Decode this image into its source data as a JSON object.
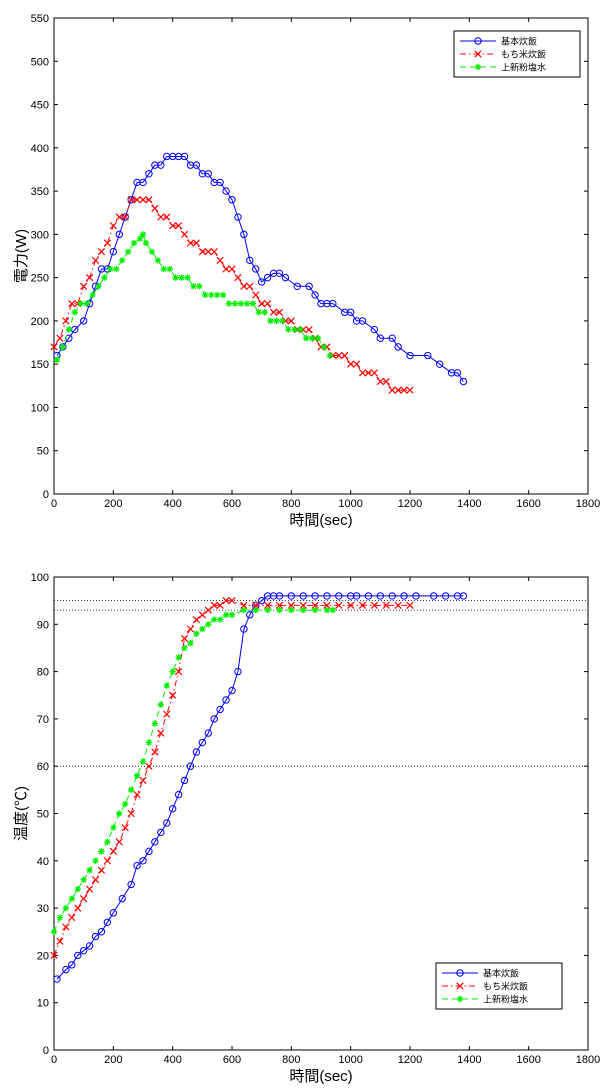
{
  "chart_data": [
    {
      "type": "line",
      "xlabel": "時間(sec)",
      "ylabel": "電力(W)",
      "xlim": [
        0,
        1800
      ],
      "ylim": [
        0,
        550
      ],
      "xticks": [
        "0",
        "200",
        "400",
        "600",
        "800",
        "1000",
        "1200",
        "1400",
        "1600",
        "1800"
      ],
      "yticks": [
        "0",
        "50",
        "100",
        "150",
        "200",
        "250",
        "300",
        "350",
        "400",
        "450",
        "500",
        "550"
      ],
      "grid": false,
      "legend_position": "top-right",
      "series": [
        {
          "name": "基本炊飯",
          "color": "#0000ff",
          "marker": "circle",
          "dash": "solid",
          "x": [
            10,
            30,
            50,
            70,
            100,
            120,
            140,
            160,
            180,
            200,
            220,
            240,
            260,
            280,
            300,
            320,
            340,
            360,
            380,
            400,
            420,
            440,
            460,
            480,
            500,
            520,
            540,
            560,
            580,
            600,
            620,
            640,
            660,
            680,
            700,
            720,
            740,
            760,
            780,
            820,
            860,
            880,
            900,
            920,
            940,
            980,
            1000,
            1020,
            1040,
            1080,
            1100,
            1140,
            1160,
            1200,
            1260,
            1300,
            1340,
            1360,
            1380
          ],
          "y": [
            160,
            170,
            180,
            190,
            200,
            220,
            240,
            260,
            260,
            280,
            300,
            320,
            340,
            360,
            360,
            370,
            380,
            380,
            390,
            390,
            390,
            390,
            380,
            380,
            370,
            370,
            360,
            360,
            350,
            340,
            320,
            300,
            270,
            260,
            245,
            250,
            255,
            255,
            250,
            240,
            240,
            230,
            220,
            220,
            220,
            210,
            210,
            200,
            200,
            190,
            180,
            180,
            170,
            160,
            160,
            150,
            140,
            140,
            130
          ]
        },
        {
          "name": "もち米炊飯",
          "color": "#ff0000",
          "marker": "x",
          "dash": "dashdot",
          "x": [
            0,
            20,
            40,
            60,
            80,
            100,
            120,
            140,
            160,
            180,
            200,
            220,
            240,
            260,
            280,
            300,
            320,
            340,
            360,
            380,
            400,
            420,
            440,
            460,
            480,
            500,
            520,
            540,
            560,
            580,
            600,
            620,
            640,
            660,
            680,
            700,
            720,
            740,
            760,
            780,
            800,
            820,
            840,
            860,
            880,
            900,
            920,
            940,
            960,
            980,
            1000,
            1020,
            1040,
            1060,
            1080,
            1100,
            1120,
            1140,
            1160,
            1180,
            1200
          ],
          "y": [
            170,
            180,
            200,
            220,
            220,
            240,
            250,
            270,
            280,
            290,
            310,
            320,
            320,
            340,
            340,
            340,
            340,
            330,
            320,
            320,
            310,
            310,
            300,
            290,
            290,
            280,
            280,
            280,
            270,
            260,
            260,
            250,
            240,
            240,
            230,
            220,
            220,
            210,
            210,
            200,
            200,
            190,
            190,
            190,
            180,
            170,
            170,
            160,
            160,
            160,
            150,
            150,
            140,
            140,
            140,
            130,
            130,
            120,
            120,
            120,
            120
          ]
        },
        {
          "name": "上新粉塩水",
          "color": "#00ee00",
          "marker": "star",
          "dash": "dash",
          "x": [
            10,
            30,
            50,
            70,
            90,
            110,
            130,
            150,
            170,
            190,
            210,
            230,
            250,
            270,
            290,
            300,
            310,
            330,
            350,
            370,
            390,
            410,
            430,
            450,
            470,
            490,
            510,
            530,
            550,
            570,
            590,
            610,
            630,
            650,
            670,
            690,
            710,
            730,
            750,
            770,
            790,
            810,
            830,
            850,
            870,
            890,
            910,
            930
          ],
          "y": [
            155,
            170,
            190,
            210,
            220,
            220,
            230,
            240,
            250,
            260,
            260,
            270,
            280,
            290,
            295,
            300,
            290,
            280,
            270,
            260,
            260,
            250,
            250,
            250,
            240,
            240,
            230,
            230,
            230,
            230,
            220,
            220,
            220,
            220,
            220,
            210,
            210,
            200,
            200,
            200,
            190,
            190,
            190,
            180,
            180,
            180,
            170,
            160
          ]
        }
      ]
    },
    {
      "type": "line",
      "xlabel": "時間(sec)",
      "ylabel": "温度(℃)",
      "xlim": [
        0,
        1800
      ],
      "ylim": [
        0,
        100
      ],
      "xticks": [
        "0",
        "200",
        "400",
        "600",
        "800",
        "1000",
        "1200",
        "1400",
        "1600",
        "1800"
      ],
      "yticks": [
        "0",
        "10",
        "20",
        "30",
        "40",
        "50",
        "60",
        "70",
        "80",
        "90",
        "100"
      ],
      "grid": false,
      "reference_lines_y": [
        60,
        93,
        95
      ],
      "legend_position": "bottom-right",
      "series": [
        {
          "name": "基本炊飯",
          "color": "#0000ff",
          "marker": "circle",
          "dash": "solid",
          "x": [
            10,
            40,
            60,
            80,
            100,
            120,
            140,
            160,
            180,
            200,
            230,
            260,
            280,
            300,
            320,
            340,
            360,
            380,
            400,
            420,
            440,
            460,
            480,
            500,
            520,
            540,
            560,
            580,
            600,
            620,
            640,
            660,
            680,
            700,
            720,
            740,
            760,
            800,
            840,
            880,
            920,
            960,
            1000,
            1020,
            1060,
            1100,
            1140,
            1180,
            1220,
            1280,
            1320,
            1360,
            1380
          ],
          "y": [
            15,
            17,
            18,
            20,
            21,
            22,
            24,
            25,
            27,
            29,
            32,
            35,
            39,
            40,
            42,
            44,
            46,
            48,
            51,
            54,
            57,
            60,
            63,
            65,
            67,
            70,
            72,
            74,
            76,
            80,
            89,
            92,
            94,
            95,
            96,
            96,
            96,
            96,
            96,
            96,
            96,
            96,
            96,
            96,
            96,
            96,
            96,
            96,
            96,
            96,
            96,
            96,
            96
          ]
        },
        {
          "name": "もち米炊飯",
          "color": "#ff0000",
          "marker": "x",
          "dash": "dashdot",
          "x": [
            0,
            20,
            40,
            60,
            80,
            100,
            120,
            140,
            160,
            180,
            200,
            220,
            240,
            260,
            280,
            300,
            320,
            340,
            360,
            380,
            400,
            420,
            440,
            460,
            480,
            500,
            520,
            540,
            560,
            580,
            600,
            640,
            680,
            720,
            760,
            800,
            840,
            880,
            920,
            960,
            1000,
            1040,
            1080,
            1120,
            1160,
            1200
          ],
          "y": [
            20,
            23,
            26,
            28,
            30,
            32,
            34,
            36,
            38,
            40,
            42,
            44,
            47,
            50,
            54,
            57,
            60,
            63,
            67,
            71,
            75,
            80,
            87,
            89,
            91,
            92,
            93,
            94,
            94,
            95,
            95,
            94,
            94,
            94,
            94,
            94,
            94,
            94,
            94,
            94,
            94,
            94,
            94,
            94,
            94,
            94
          ]
        },
        {
          "name": "上新粉塩水",
          "color": "#00ee00",
          "marker": "star",
          "dash": "dash",
          "x": [
            0,
            20,
            40,
            60,
            80,
            100,
            120,
            140,
            160,
            180,
            200,
            220,
            240,
            260,
            280,
            300,
            320,
            340,
            360,
            380,
            400,
            420,
            440,
            460,
            480,
            500,
            520,
            540,
            560,
            580,
            600,
            640,
            680,
            720,
            760,
            800,
            840,
            880,
            920,
            940
          ],
          "y": [
            25,
            28,
            30,
            32,
            34,
            36,
            38,
            40,
            42,
            44,
            47,
            50,
            52,
            55,
            58,
            61,
            65,
            69,
            73,
            77,
            80,
            83,
            85,
            86,
            88,
            89,
            90,
            91,
            91,
            92,
            92,
            93,
            93,
            93,
            93,
            93,
            93,
            93,
            93,
            93
          ]
        }
      ]
    }
  ]
}
